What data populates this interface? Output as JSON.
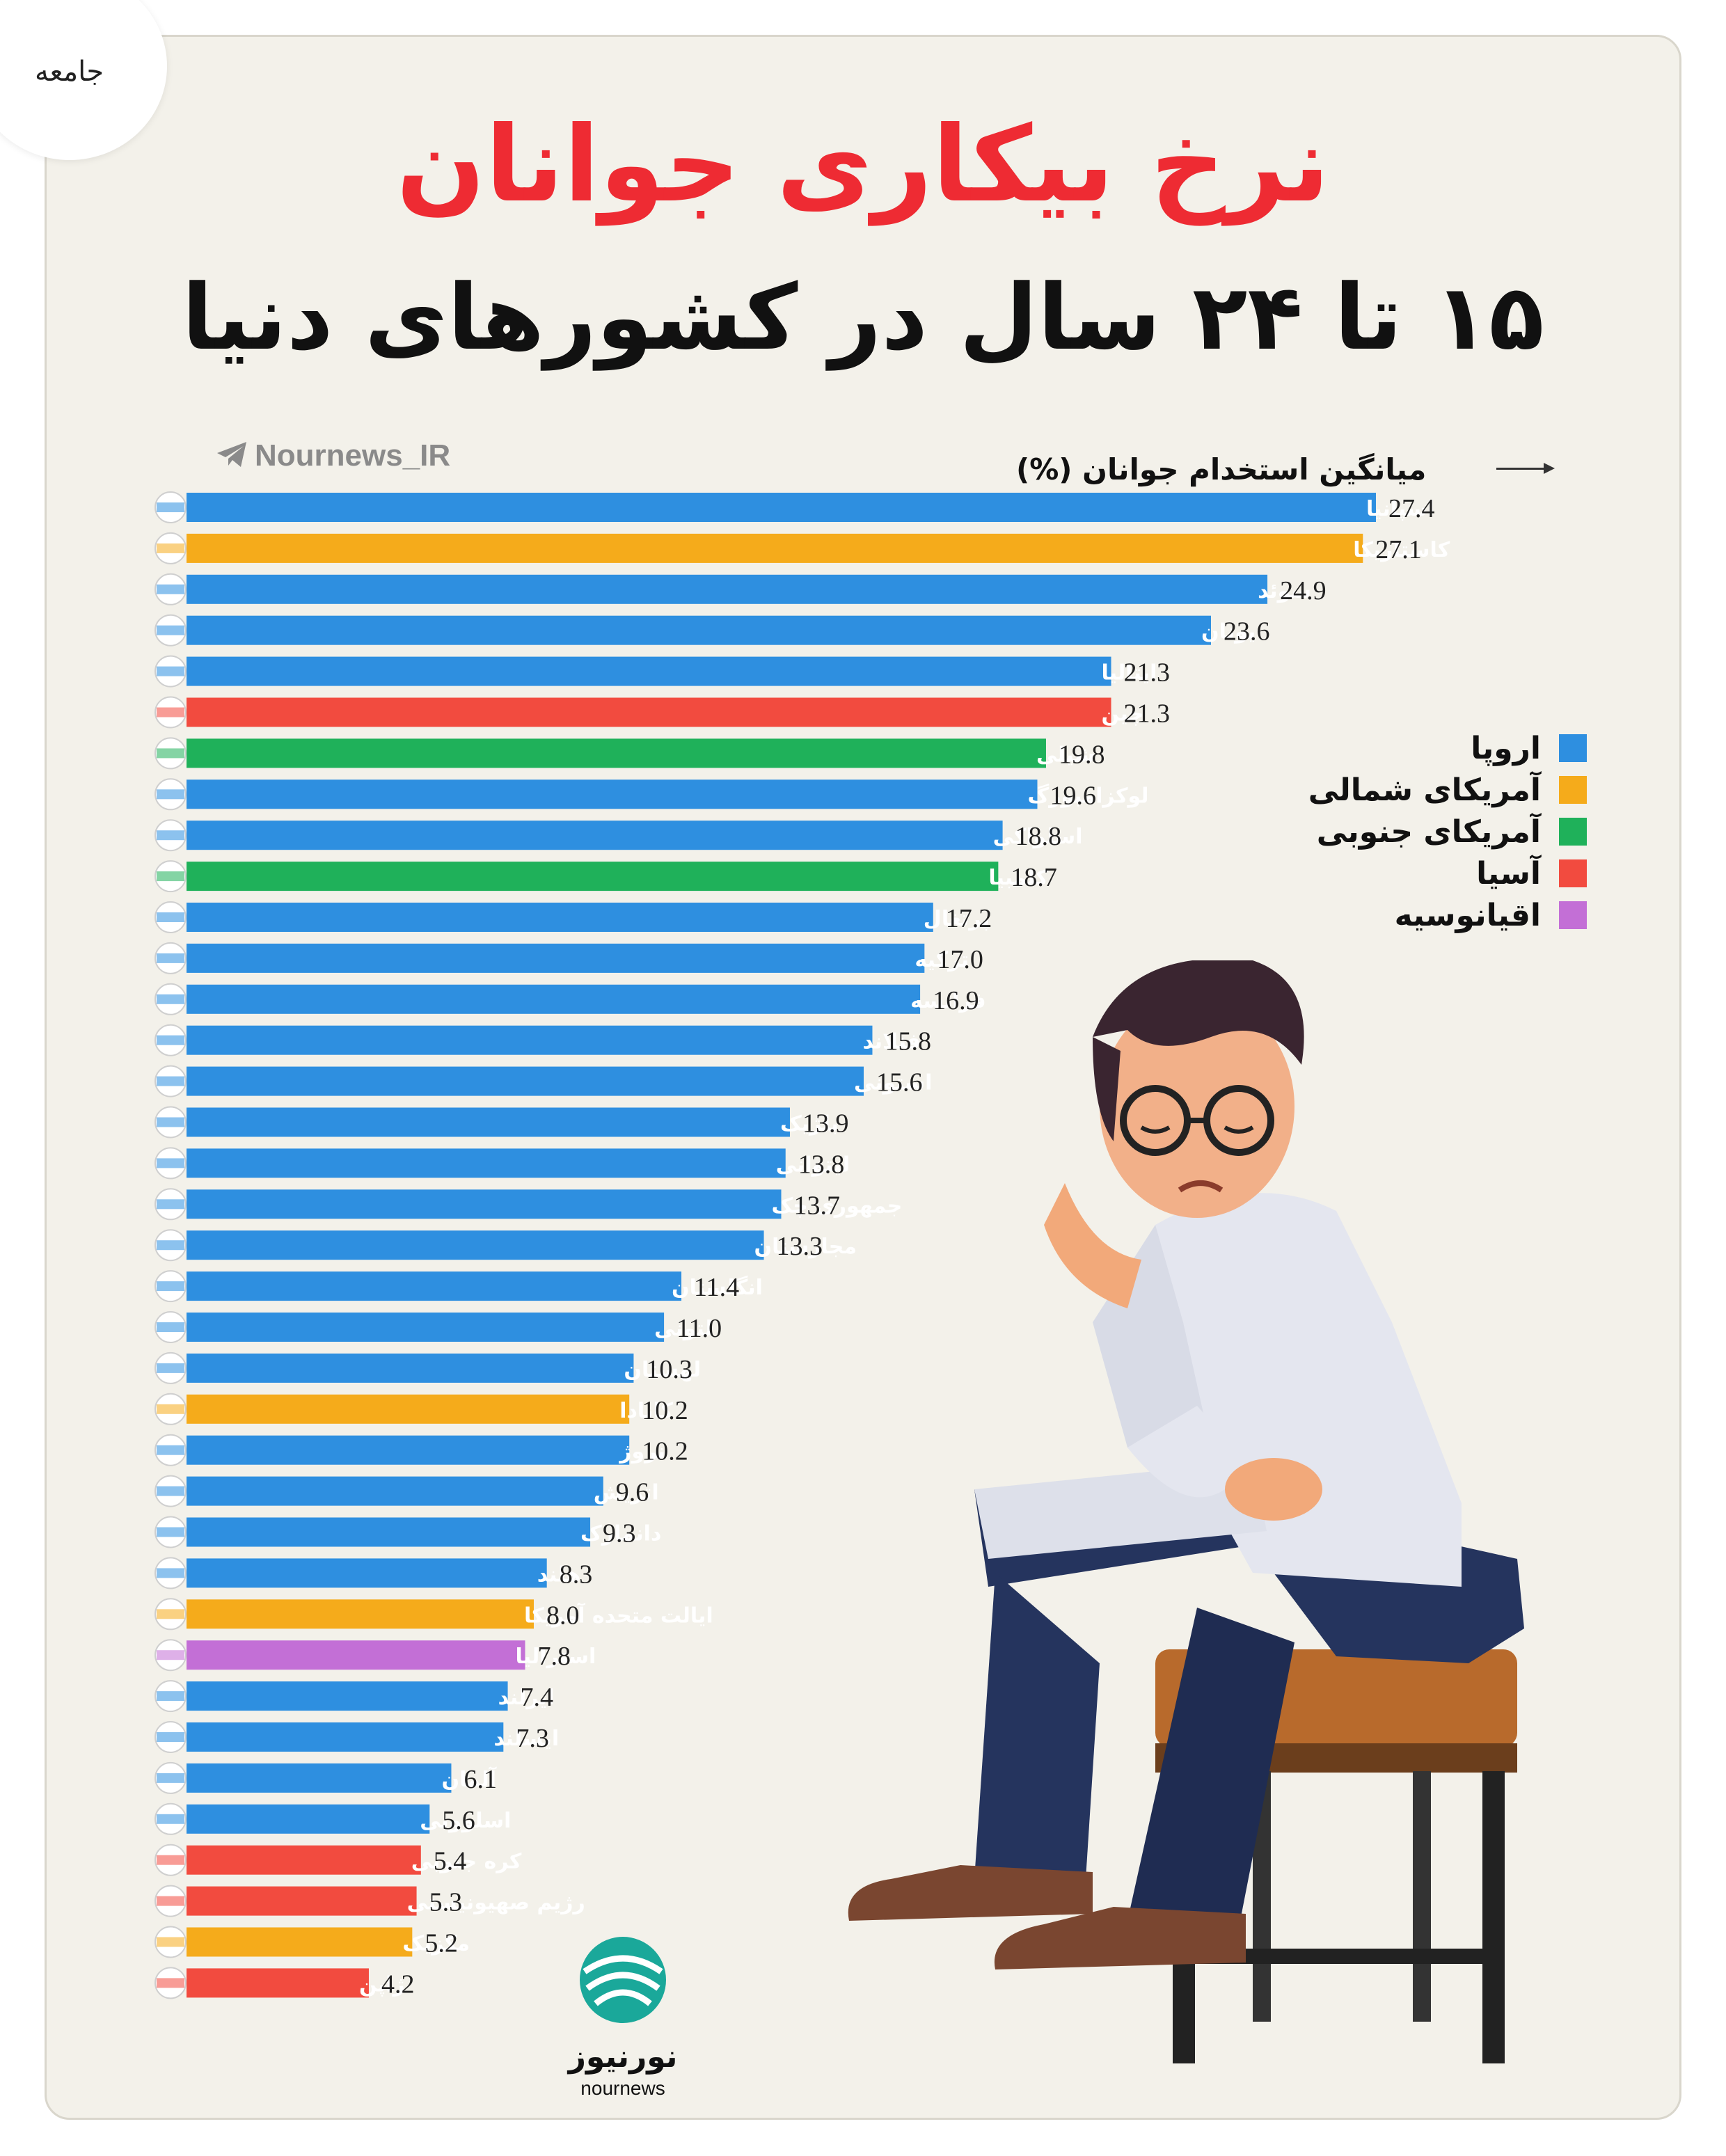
{
  "category_tag": "جامعه",
  "title": "نرخ بیکاری جوانان",
  "subtitle": "۱۵ تا ۲۴ سال در کشورهای دنیا",
  "source_handle": "Nournews_IR",
  "brand": {
    "name_fa": "نورنیوز",
    "name_en": "nournews",
    "color": "#1aa89a"
  },
  "legend": [
    {
      "label": "اروپا",
      "color": "#2e8fe0"
    },
    {
      "label": "آمریکای شمالی",
      "color": "#f5ab1b"
    },
    {
      "label": "آمریکای جنوبی",
      "color": "#1fb15a"
    },
    {
      "label": "آسیا",
      "color": "#f24b3f"
    },
    {
      "label": "اقیانوسیه",
      "color": "#c36fd6"
    }
  ],
  "chart_data": {
    "type": "bar",
    "orientation": "horizontal",
    "title": "",
    "xlabel": "میانگین استخدام جوانان (%)",
    "ylabel": "",
    "xlim": [
      0,
      27.4
    ],
    "grid": false,
    "legend_position": "right",
    "categories": [
      "اسپانیا",
      "کاستاریکا",
      "سوئد",
      "یونان",
      "ایتالیا",
      "چین",
      "شیلی",
      "لوکزامبورگ",
      "اسلواکی",
      "کلمبیا",
      "پرتغال",
      "ترکیه",
      "فرانسه",
      "فنلاند",
      "استونی",
      "بلژیک",
      "لیتوانی",
      "جمهوری چک",
      "مجارستان",
      "انگلستان",
      "لتونی",
      "لهستان",
      "کانادا",
      "نروژ",
      "اتریش",
      "دانمارک",
      "هلند",
      "ایالت متحده آمریکا",
      "استرالیا",
      "ایرلند",
      "ایسلند",
      "آلمان",
      "اسلوونی",
      "کره جنوبی",
      "رژیم صهیونیستی",
      "مکزیک",
      "ژاپن"
    ],
    "values": [
      27.4,
      27.1,
      24.9,
      23.6,
      21.3,
      21.3,
      19.8,
      19.6,
      18.8,
      18.7,
      17.2,
      17.0,
      16.9,
      15.8,
      15.6,
      13.9,
      13.8,
      13.7,
      13.3,
      11.4,
      11.0,
      10.3,
      10.2,
      10.2,
      9.6,
      9.3,
      8.3,
      8.0,
      7.8,
      7.4,
      7.3,
      6.1,
      5.6,
      5.4,
      5.3,
      5.2,
      4.2
    ],
    "value_labels": [
      "27.4",
      "27.1",
      "24.9",
      "23.6",
      "21.3",
      "21.3",
      "19.8",
      "19.6",
      "18.8",
      "18.7",
      "17.2",
      "17.0",
      "16.9",
      "15.8",
      "15.6",
      "13.9",
      "13.8",
      "13.7",
      "13.3",
      "11.4",
      "11.0",
      "10.3",
      "10.2",
      "10.2",
      "9.6",
      "9.3",
      "8.3",
      "8.0",
      "7.8",
      "7.4",
      "7.3",
      "6.1",
      "5.6",
      "5.4",
      "5.3",
      "5.2",
      "4.2"
    ],
    "regions": [
      "اروپا",
      "آمریکای شمالی",
      "اروپا",
      "اروپا",
      "اروپا",
      "آسیا",
      "آمریکای جنوبی",
      "اروپا",
      "اروپا",
      "آمریکای جنوبی",
      "اروپا",
      "اروپا",
      "اروپا",
      "اروپا",
      "اروپا",
      "اروپا",
      "اروپا",
      "اروپا",
      "اروپا",
      "اروپا",
      "اروپا",
      "اروپا",
      "آمریکای شمالی",
      "اروپا",
      "اروپا",
      "اروپا",
      "اروپا",
      "آمریکای شمالی",
      "اقیانوسیه",
      "اروپا",
      "اروپا",
      "اروپا",
      "اروپا",
      "آسیا",
      "آسیا",
      "آمریکای شمالی",
      "آسیا"
    ],
    "flags": [
      "spain-flag",
      "costa-rica-flag",
      "sweden-flag",
      "greece-flag",
      "italy-flag",
      "china-flag",
      "chile-flag",
      "luxembourg-flag",
      "slovakia-flag",
      "colombia-flag",
      "portugal-flag",
      "turkey-flag",
      "france-flag",
      "finland-flag",
      "estonia-flag",
      "belgium-flag",
      "lithuania-flag",
      "czech-flag",
      "hungary-flag",
      "uk-flag",
      "latvia-flag",
      "poland-flag",
      "canada-flag",
      "norway-flag",
      "austria-flag",
      "denmark-flag",
      "netherlands-flag",
      "usa-flag",
      "australia-flag",
      "ireland-flag",
      "iceland-flag",
      "germany-flag",
      "slovenia-flag",
      "south-korea-flag",
      "israel-flag",
      "mexico-flag",
      "japan-flag"
    ]
  }
}
